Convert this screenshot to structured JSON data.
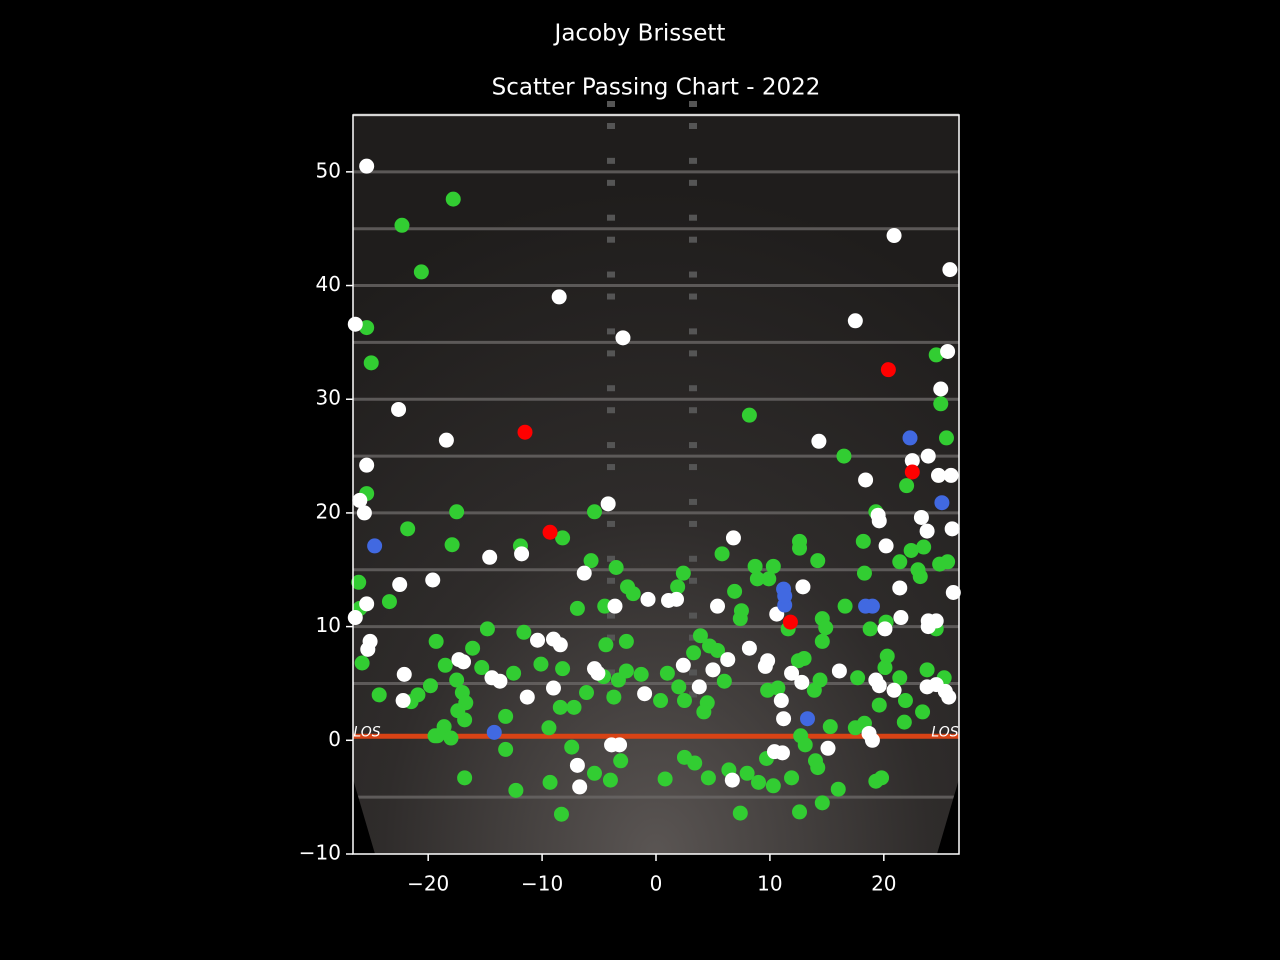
{
  "chart_data": {
    "type": "scatter",
    "title": "Jacoby Brissett",
    "subtitle": "Scatter Passing Chart - 2022",
    "field_label": "LOS",
    "xlim": [
      -26.6,
      26.6
    ],
    "ylim": [
      -10,
      55
    ],
    "xticks": [
      {
        "value": -20,
        "label": "−20"
      },
      {
        "value": -10,
        "label": "−10"
      },
      0,
      10,
      20
    ],
    "yticks": [
      {
        "value": -10,
        "label": "−10"
      },
      0,
      10,
      20,
      30,
      40,
      50
    ],
    "grid": false,
    "series": [
      {
        "color": "#32cd32",
        "x": [
          -22.3,
          -17.8,
          -20.6,
          -25.4,
          -25.0,
          8.2,
          24.6,
          25.0,
          25.5,
          16.5,
          22.0,
          -25.4,
          -17.5,
          -21.8,
          -17.9,
          -11.9,
          -8.2,
          -5.4,
          -5.7,
          -3.5,
          2.4,
          5.8,
          8.7,
          10.3,
          8.9,
          9.9,
          6.9,
          -2.5,
          -2.0,
          1.9,
          12.6,
          12.6,
          14.2,
          18.2,
          18.3,
          19.3,
          21.4,
          22.4,
          23.5,
          23.0,
          23.2,
          24.9,
          25.6,
          -26.1,
          -23.4,
          -26.0,
          -6.9,
          -4.5,
          7.5,
          7.4,
          11.6,
          14.6,
          16.6,
          18.8,
          20.2,
          24.6,
          -25.8,
          -24.3,
          -19.3,
          -14.8,
          -16.1,
          -18.5,
          -19.8,
          -20.9,
          -21.5,
          -17.5,
          -17.0,
          -16.7,
          -17.4,
          -16.8,
          -19.2,
          -18.6,
          -18.0,
          -15.3,
          -13.2,
          -12.5,
          -11.6,
          -10.1,
          -8.2,
          -8.4,
          -7.2,
          -9.4,
          -6.1,
          -4.6,
          -4.4,
          -2.6,
          -3.3,
          -2.6,
          -3.7,
          -1.3,
          0.4,
          1.0,
          2.0,
          2.5,
          3.3,
          3.9,
          4.7,
          5.4,
          4.5,
          4.2,
          6.0,
          9.8,
          10.7,
          12.5,
          13.0,
          13.9,
          14.4,
          14.9,
          14.6,
          17.7,
          17.5,
          18.3,
          15.3,
          12.7,
          13.1,
          19.6,
          20.1,
          20.3,
          21.4,
          21.9,
          21.8,
          23.4,
          23.8,
          25.3,
          -19.4,
          -13.2,
          -16.8,
          -12.3,
          -9.3,
          -8.3,
          -7.4,
          -5.4,
          -4.0,
          -3.1,
          0.8,
          2.5,
          3.4,
          4.6,
          6.4,
          7.4,
          8.0,
          9.0,
          10.3,
          11.9,
          12.6,
          14.0,
          14.2,
          14.6,
          16.0,
          19.3,
          19.8,
          9.7
        ],
        "y": [
          45.3,
          47.6,
          41.2,
          36.3,
          33.2,
          28.6,
          33.9,
          29.6,
          26.6,
          25.0,
          22.4,
          21.7,
          20.1,
          18.6,
          17.2,
          17.1,
          17.8,
          20.1,
          15.8,
          15.2,
          14.7,
          16.4,
          15.3,
          15.3,
          14.2,
          14.2,
          13.1,
          13.5,
          12.9,
          13.5,
          17.5,
          16.9,
          15.8,
          17.5,
          14.7,
          20.1,
          15.7,
          16.7,
          17.0,
          15.0,
          14.4,
          15.5,
          15.7,
          13.9,
          12.2,
          11.6,
          11.6,
          11.8,
          11.4,
          10.7,
          9.8,
          10.7,
          11.8,
          9.8,
          10.4,
          9.8,
          6.8,
          4.0,
          8.7,
          9.8,
          8.1,
          6.6,
          4.8,
          4.0,
          3.4,
          5.3,
          4.2,
          3.3,
          2.6,
          1.8,
          0.4,
          1.2,
          0.2,
          6.4,
          2.1,
          5.9,
          9.5,
          6.7,
          6.3,
          2.9,
          2.9,
          1.1,
          4.2,
          5.6,
          8.4,
          8.7,
          5.3,
          6.1,
          3.8,
          5.8,
          3.5,
          5.9,
          4.7,
          3.5,
          7.7,
          9.2,
          8.3,
          7.9,
          3.3,
          2.5,
          5.2,
          4.4,
          4.6,
          7.0,
          7.2,
          4.4,
          5.3,
          9.9,
          8.7,
          5.5,
          1.1,
          1.5,
          1.2,
          0.4,
          -0.4,
          3.1,
          6.4,
          7.4,
          5.5,
          3.5,
          1.6,
          2.5,
          6.2,
          5.5,
          0.4,
          -0.8,
          -3.3,
          -4.4,
          -3.7,
          -6.5,
          -0.6,
          -2.9,
          -3.5,
          -1.8,
          -3.4,
          -1.5,
          -2.0,
          -3.3,
          -2.6,
          -6.4,
          -2.9,
          -3.7,
          -4.0,
          -3.3,
          -6.3,
          -1.8,
          -2.4,
          -5.5,
          -4.3,
          -3.6,
          -3.3,
          -1.6
        ]
      },
      {
        "color": "#ffffff",
        "x": [
          -25.4,
          20.9,
          25.8,
          -8.5,
          -2.9,
          17.5,
          -26.4,
          25.6,
          25.0,
          -22.6,
          -18.4,
          14.3,
          -25.4,
          23.9,
          22.5,
          24.8,
          25.9,
          18.4,
          -26.0,
          -25.6,
          -4.2,
          19.5,
          19.6,
          23.3,
          23.8,
          26.0,
          6.8,
          20.2,
          -14.6,
          -11.8,
          -6.3,
          -22.5,
          -19.6,
          12.9,
          21.4,
          26.1,
          -25.4,
          -26.4,
          -3.6,
          -0.7,
          1.1,
          1.8,
          5.4,
          10.6,
          21.5,
          23.9,
          24.6,
          23.9,
          20.1,
          -25.1,
          -25.3,
          -10.4,
          -9.0,
          -8.4,
          8.2,
          6.3,
          9.8,
          9.6,
          -17.3,
          -16.9,
          2.4,
          5.0,
          -5.4,
          -5.1,
          -22.1,
          -14.4,
          -13.7,
          11.9,
          12.8,
          16.1,
          19.3,
          19.6,
          20.9,
          23.8,
          24.6,
          25.4,
          25.7,
          -9.0,
          -1.0,
          3.8,
          -22.2,
          -11.3,
          11.0,
          11.2,
          18.7,
          19.0,
          -3.9,
          -3.2,
          10.4,
          11.1,
          15.1,
          -6.9,
          -6.7,
          6.7
        ],
        "y": [
          50.5,
          44.4,
          41.4,
          39.0,
          35.4,
          36.9,
          36.6,
          34.2,
          30.9,
          29.1,
          26.4,
          26.3,
          24.2,
          25.0,
          24.6,
          23.3,
          23.3,
          22.9,
          21.1,
          20.0,
          20.8,
          19.8,
          19.3,
          19.6,
          18.4,
          18.6,
          17.8,
          17.1,
          16.1,
          16.4,
          14.7,
          13.7,
          14.1,
          13.5,
          13.4,
          13.0,
          12.0,
          10.8,
          11.8,
          12.4,
          12.3,
          12.4,
          11.8,
          11.1,
          10.8,
          10.5,
          10.5,
          10.0,
          9.8,
          8.7,
          8.0,
          8.8,
          8.9,
          8.4,
          8.1,
          7.1,
          7.0,
          6.5,
          7.1,
          6.9,
          6.6,
          6.2,
          6.3,
          5.9,
          5.8,
          5.5,
          5.2,
          5.9,
          5.1,
          6.1,
          5.3,
          4.8,
          4.4,
          4.7,
          4.9,
          4.3,
          3.8,
          4.6,
          4.1,
          4.7,
          3.5,
          3.8,
          3.5,
          1.9,
          0.6,
          0.0,
          -0.4,
          -0.4,
          -1.0,
          -1.1,
          -0.7,
          -2.2,
          -4.1,
          -3.5
        ]
      },
      {
        "color": "#4169e1",
        "x": [
          -24.7,
          -14.2,
          13.3,
          11.2,
          11.3,
          18.4,
          19.0,
          22.3,
          25.1,
          11.3
        ],
        "y": [
          17.1,
          0.7,
          1.9,
          13.3,
          11.9,
          11.8,
          11.8,
          26.6,
          20.9,
          12.7
        ]
      },
      {
        "color": "#ff0000",
        "x": [
          -11.5,
          -9.3,
          20.4,
          22.5,
          11.8
        ],
        "y": [
          27.1,
          18.3,
          32.6,
          23.6,
          10.4
        ]
      }
    ]
  }
}
